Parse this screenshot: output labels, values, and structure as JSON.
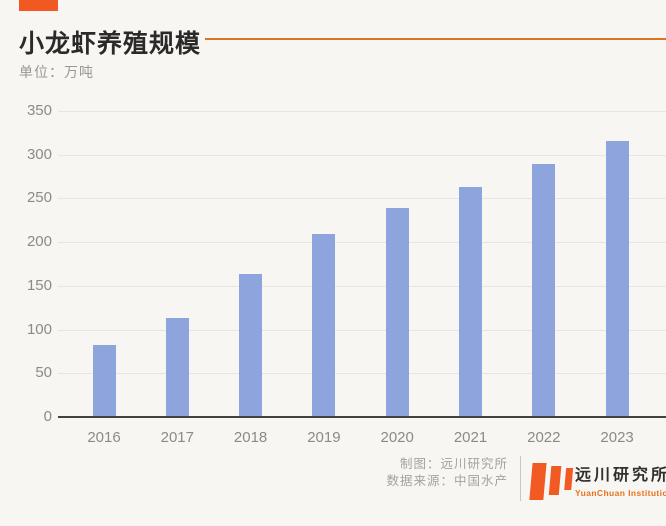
{
  "page": {
    "background_color": "#f7f6f3"
  },
  "header": {
    "title": "小龙虾养殖规模",
    "unit_label": "单位：万吨",
    "accent_block_color": "#f25822",
    "accent_line_color": "#de7321"
  },
  "chart_data": {
    "type": "bar",
    "title": "小龙虾养殖规模",
    "ylabel": "万吨",
    "categories": [
      "2016",
      "2017",
      "2018",
      "2019",
      "2020",
      "2021",
      "2022",
      "2023"
    ],
    "values": [
      82,
      113,
      164,
      209,
      239,
      263,
      289,
      316
    ],
    "ylim": [
      0,
      350
    ],
    "yticks": [
      0,
      50,
      100,
      150,
      200,
      250,
      300,
      350
    ],
    "grid": true,
    "legend": false,
    "bar_color": "#8da5dc",
    "gridline_color": "#e7e5e2",
    "axis_line_color": "#44423f",
    "tick_label_color": "#8c8a88"
  },
  "footer": {
    "credit": "制图：远川研究所",
    "source": "数据来源：中国水产",
    "logo": {
      "name_cn": "远川研究所",
      "name_en": "YuanChuan Institution",
      "mark_color": "#f15a22"
    }
  }
}
